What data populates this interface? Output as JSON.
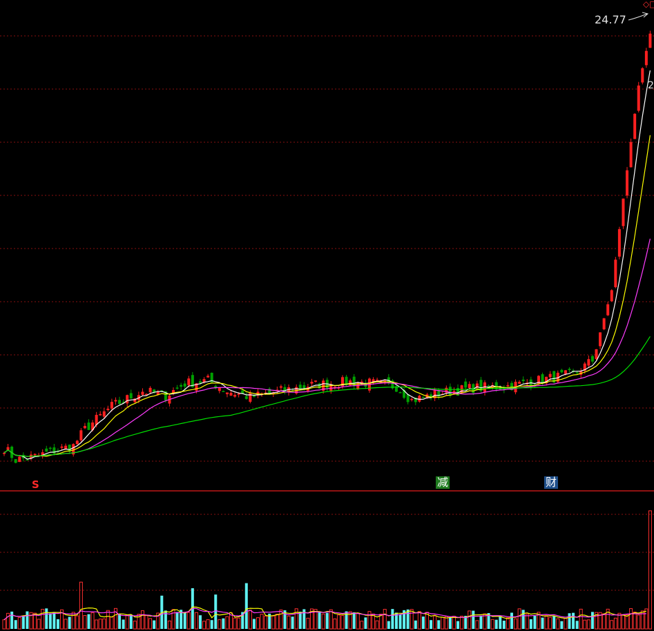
{
  "chart_data": {
    "type": "candlestick",
    "price_ylim": [
      9.5,
      25.5
    ],
    "volume_ylim": [
      0,
      100
    ],
    "gridlines": "on",
    "price_annotation": "24.77",
    "edge_label": "2",
    "markers": {
      "share": "S",
      "reduce": "减",
      "finance": "财"
    },
    "colors": {
      "up": "#ff2020",
      "down": "#00a000",
      "grid": "#8a1010",
      "ma5": "#ffffff",
      "ma10": "#ffff00",
      "ma20": "#ff3cff",
      "ma60": "#00e000",
      "vol_up": "#ff3030",
      "vol_down": "#5ff0f0"
    },
    "anchors": [
      [
        0,
        10.85
      ],
      [
        3,
        10.45
      ],
      [
        8,
        10.55
      ],
      [
        13,
        10.75
      ],
      [
        18,
        10.9
      ],
      [
        21,
        11.45
      ],
      [
        28,
        12.2
      ],
      [
        36,
        12.7
      ],
      [
        42,
        12.55
      ],
      [
        47,
        12.95
      ],
      [
        53,
        13.05
      ],
      [
        58,
        12.7
      ],
      [
        64,
        12.5
      ],
      [
        72,
        12.7
      ],
      [
        80,
        12.9
      ],
      [
        90,
        13.0
      ],
      [
        96,
        12.95
      ],
      [
        102,
        12.85
      ],
      [
        106,
        12.4
      ],
      [
        114,
        12.65
      ],
      [
        122,
        12.8
      ],
      [
        130,
        12.85
      ],
      [
        135,
        12.95
      ],
      [
        141,
        13.1
      ],
      [
        148,
        13.25
      ],
      [
        153,
        13.7
      ],
      [
        158,
        16.0
      ],
      [
        161,
        19.0
      ],
      [
        165,
        22.7
      ],
      [
        168,
        24.4
      ]
    ],
    "num_bars": 169,
    "volume_spike": 92
  }
}
